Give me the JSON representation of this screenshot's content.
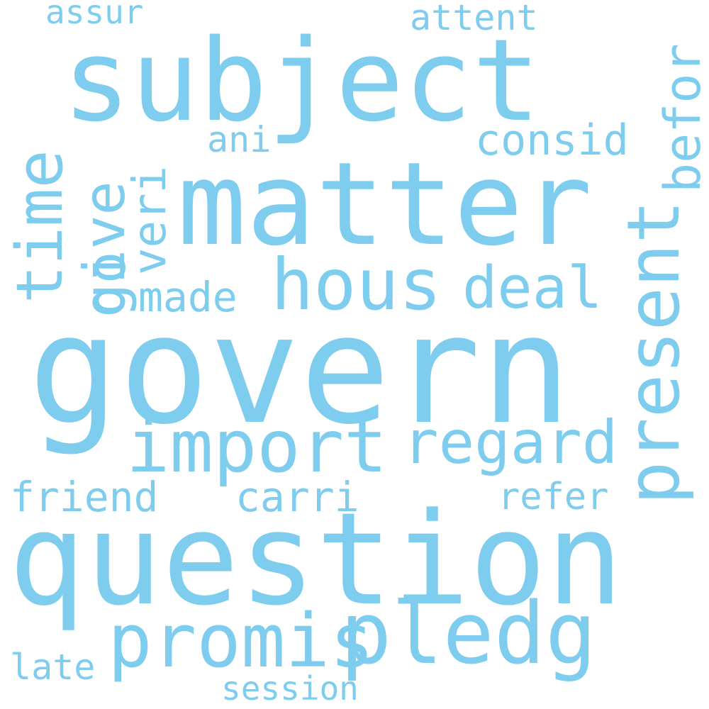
{
  "word_color": "#7ECDEE",
  "background_color": "#FFFFFF",
  "words": {
    "subject": "subject",
    "matter": "matter",
    "govern": "govern",
    "question": "question",
    "promis": "promis",
    "pledg": "pledg",
    "import": "import",
    "regard": "regard",
    "hous": "hous",
    "deal": "deal",
    "made": "made",
    "friend": "friend",
    "carri": "carri",
    "refer": "refer",
    "late": "late",
    "session": "session",
    "assur": "assur",
    "attent": "attent",
    "ani": "ani",
    "consid": "consid",
    "time": "time",
    "give": "give",
    "veri": "veri",
    "go": "go",
    "present": "present",
    "befor": "befor"
  }
}
